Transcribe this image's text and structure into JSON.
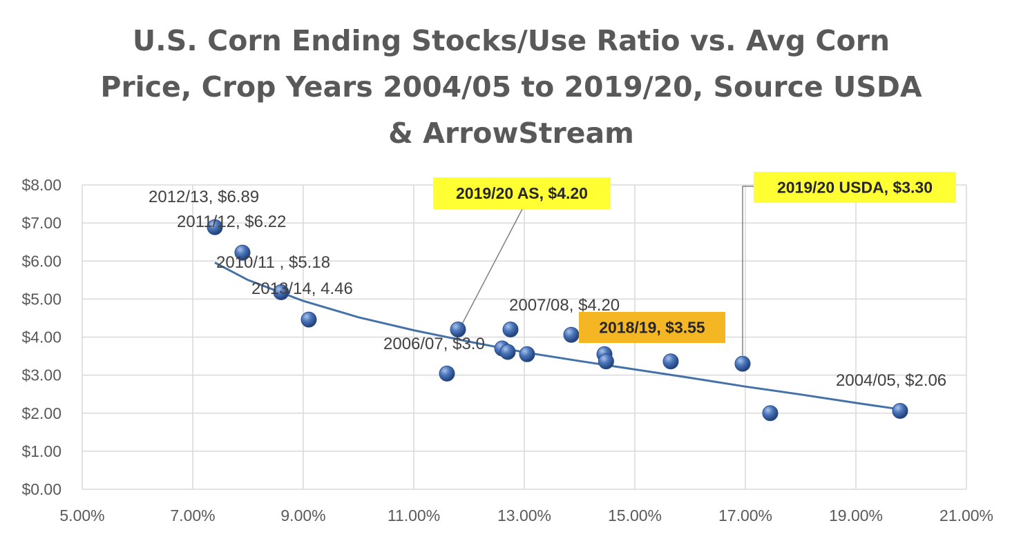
{
  "title_lines": [
    "U.S. Corn Ending Stocks/Use  Ratio vs. Avg Corn",
    "Price, Crop Years 2004/05 to 2019/20, Source USDA",
    "& ArrowStream"
  ],
  "chart_data": {
    "type": "scatter",
    "title": "U.S. Corn Ending Stocks/Use  Ratio vs. Avg Corn Price, Crop Years 2004/05 to 2019/20, Source USDA & ArrowStream",
    "xlabel": "",
    "ylabel": "",
    "xlim": [
      0.05,
      0.21
    ],
    "ylim": [
      0,
      8
    ],
    "x_ticks": [
      0.05,
      0.07,
      0.09,
      0.11,
      0.13,
      0.15,
      0.17,
      0.19,
      0.21
    ],
    "x_tick_labels": [
      "5.00%",
      "7.00%",
      "9.00%",
      "11.00%",
      "13.00%",
      "15.00%",
      "17.00%",
      "19.00%",
      "21.00%"
    ],
    "y_ticks": [
      0,
      1,
      2,
      3,
      4,
      5,
      6,
      7,
      8
    ],
    "y_tick_labels": [
      "$0.00",
      "$1.00",
      "$2.00",
      "$3.00",
      "$4.00",
      "$5.00",
      "$6.00",
      "$7.00",
      "$8.00"
    ],
    "grid": true,
    "legend": "none",
    "series": [
      {
        "points": [
          {
            "x": 0.074,
            "y": 6.89
          },
          {
            "x": 0.079,
            "y": 6.22
          },
          {
            "x": 0.086,
            "y": 5.18
          },
          {
            "x": 0.091,
            "y": 4.46
          },
          {
            "x": 0.116,
            "y": 3.04
          },
          {
            "x": 0.118,
            "y": 4.2
          },
          {
            "x": 0.126,
            "y": 3.7
          },
          {
            "x": 0.127,
            "y": 3.61
          },
          {
            "x": 0.1275,
            "y": 4.2
          },
          {
            "x": 0.1305,
            "y": 3.55
          },
          {
            "x": 0.1385,
            "y": 4.06
          },
          {
            "x": 0.1445,
            "y": 3.55
          },
          {
            "x": 0.1448,
            "y": 3.36
          },
          {
            "x": 0.1565,
            "y": 3.36
          },
          {
            "x": 0.1695,
            "y": 3.3
          },
          {
            "x": 0.1745,
            "y": 2.0
          },
          {
            "x": 0.198,
            "y": 2.06
          }
        ]
      }
    ],
    "trendline": [
      {
        "x": 0.074,
        "y": 5.96
      },
      {
        "x": 0.08,
        "y": 5.5
      },
      {
        "x": 0.09,
        "y": 4.95
      },
      {
        "x": 0.1,
        "y": 4.52
      },
      {
        "x": 0.11,
        "y": 4.18
      },
      {
        "x": 0.12,
        "y": 3.88
      },
      {
        "x": 0.13,
        "y": 3.6
      },
      {
        "x": 0.14,
        "y": 3.37
      },
      {
        "x": 0.15,
        "y": 3.15
      },
      {
        "x": 0.16,
        "y": 2.93
      },
      {
        "x": 0.17,
        "y": 2.7
      },
      {
        "x": 0.18,
        "y": 2.49
      },
      {
        "x": 0.19,
        "y": 2.27
      },
      {
        "x": 0.198,
        "y": 2.1
      }
    ],
    "annotations": [
      {
        "text": "2012/13, $6.89",
        "point": 0
      },
      {
        "text": "2011/12, $6.22",
        "point": 1
      },
      {
        "text": "2010/11 , $5.18",
        "point": 2
      },
      {
        "text": "2013/14, 4.46",
        "point": 3
      },
      {
        "text": "2006/07, $3.0",
        "point": 4
      },
      {
        "text": "2007/08, $4.20",
        "point": 8
      },
      {
        "text": "2004/05, $2.06",
        "point": 16
      }
    ],
    "callouts": [
      {
        "text": "2019/20 AS, $4.20",
        "point": 5,
        "color": "#FFFF33"
      },
      {
        "text": "2019/20 USDA, $3.30",
        "point": 14,
        "color": "#FFFF33"
      },
      {
        "text": "2018/19, $3.55",
        "point": 11,
        "color": "#F5B623"
      }
    ],
    "colors": {
      "marker": "#3F69AA",
      "trendline": "#4472A8",
      "grid": "#D9D9D9"
    }
  }
}
